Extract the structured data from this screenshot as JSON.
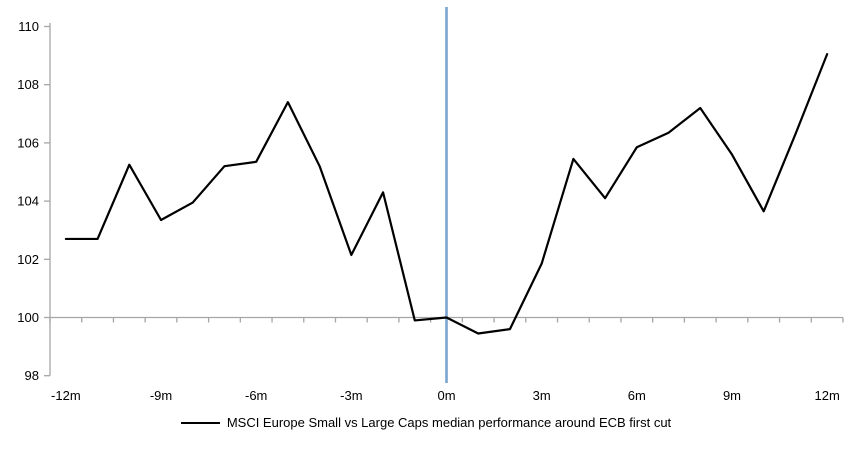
{
  "chart_data": {
    "type": "line",
    "title": "",
    "months": [
      -12,
      -11,
      -10,
      -9,
      -8,
      -7,
      -6,
      -5,
      -4,
      -3,
      -2,
      -1,
      0,
      1,
      2,
      3,
      4,
      5,
      6,
      7,
      8,
      9,
      10,
      11,
      12
    ],
    "series": [
      {
        "name": "MSCI Europe Small vs Large Caps median performance around ECB first cut",
        "color": "#000000",
        "values": [
          102.7,
          102.7,
          105.25,
          103.35,
          103.95,
          105.2,
          105.35,
          107.4,
          105.2,
          102.15,
          104.3,
          99.9,
          100.0,
          99.45,
          99.6,
          101.85,
          105.45,
          104.1,
          105.85,
          106.35,
          107.2,
          105.6,
          103.65,
          106.3,
          109.05
        ]
      }
    ],
    "x_tick_months": [
      -12,
      -9,
      -6,
      -3,
      0,
      3,
      6,
      9,
      12
    ],
    "x_tick_labels": [
      "-12m",
      "-9m",
      "-6m",
      "-3m",
      "0m",
      "3m",
      "6m",
      "9m",
      "12m"
    ],
    "y_ticks": [
      110,
      108,
      106,
      104,
      102,
      100,
      98
    ],
    "ylim": [
      98,
      110
    ],
    "xlim_months": [
      -12,
      12
    ],
    "baseline_value": 100,
    "event_line": {
      "at_month": 0,
      "color": "#7aa5ce"
    },
    "axis_color": "#a6a6a6",
    "background": "#ffffff",
    "grid": "off",
    "legend_position": "bottom-center"
  }
}
